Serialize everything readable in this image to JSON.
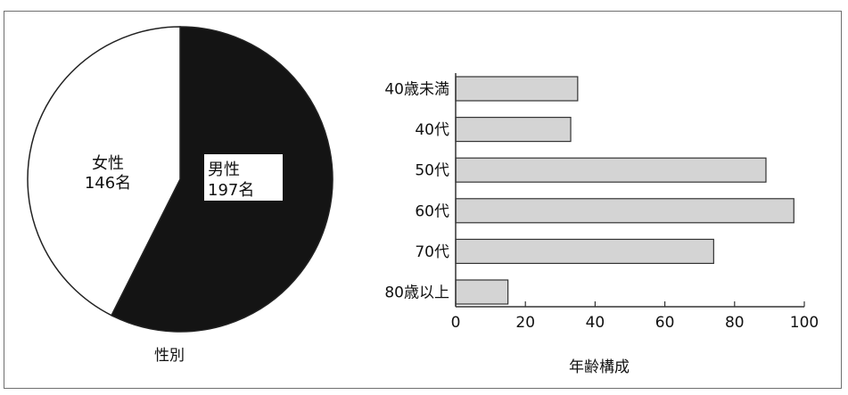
{
  "chart_data": [
    {
      "type": "pie",
      "title": "性別",
      "slices": [
        {
          "label_line1": "男性",
          "label_line2": "197名",
          "value": 197,
          "color": "#141414"
        },
        {
          "label_line1": "女性",
          "label_line2": "146名",
          "value": 146,
          "color": "#ffffff"
        }
      ]
    },
    {
      "type": "bar",
      "orientation": "horizontal",
      "title": "年齢構成",
      "categories": [
        "40歳未満",
        "40代",
        "50代",
        "60代",
        "70代",
        "80歳以上"
      ],
      "values": [
        35,
        33,
        89,
        97,
        74,
        15
      ],
      "xlim": [
        0,
        100
      ],
      "xticks": [
        "0",
        "20",
        "40",
        "60",
        "80",
        "100"
      ],
      "bar_color": "#d4d4d4",
      "grid": false
    }
  ]
}
